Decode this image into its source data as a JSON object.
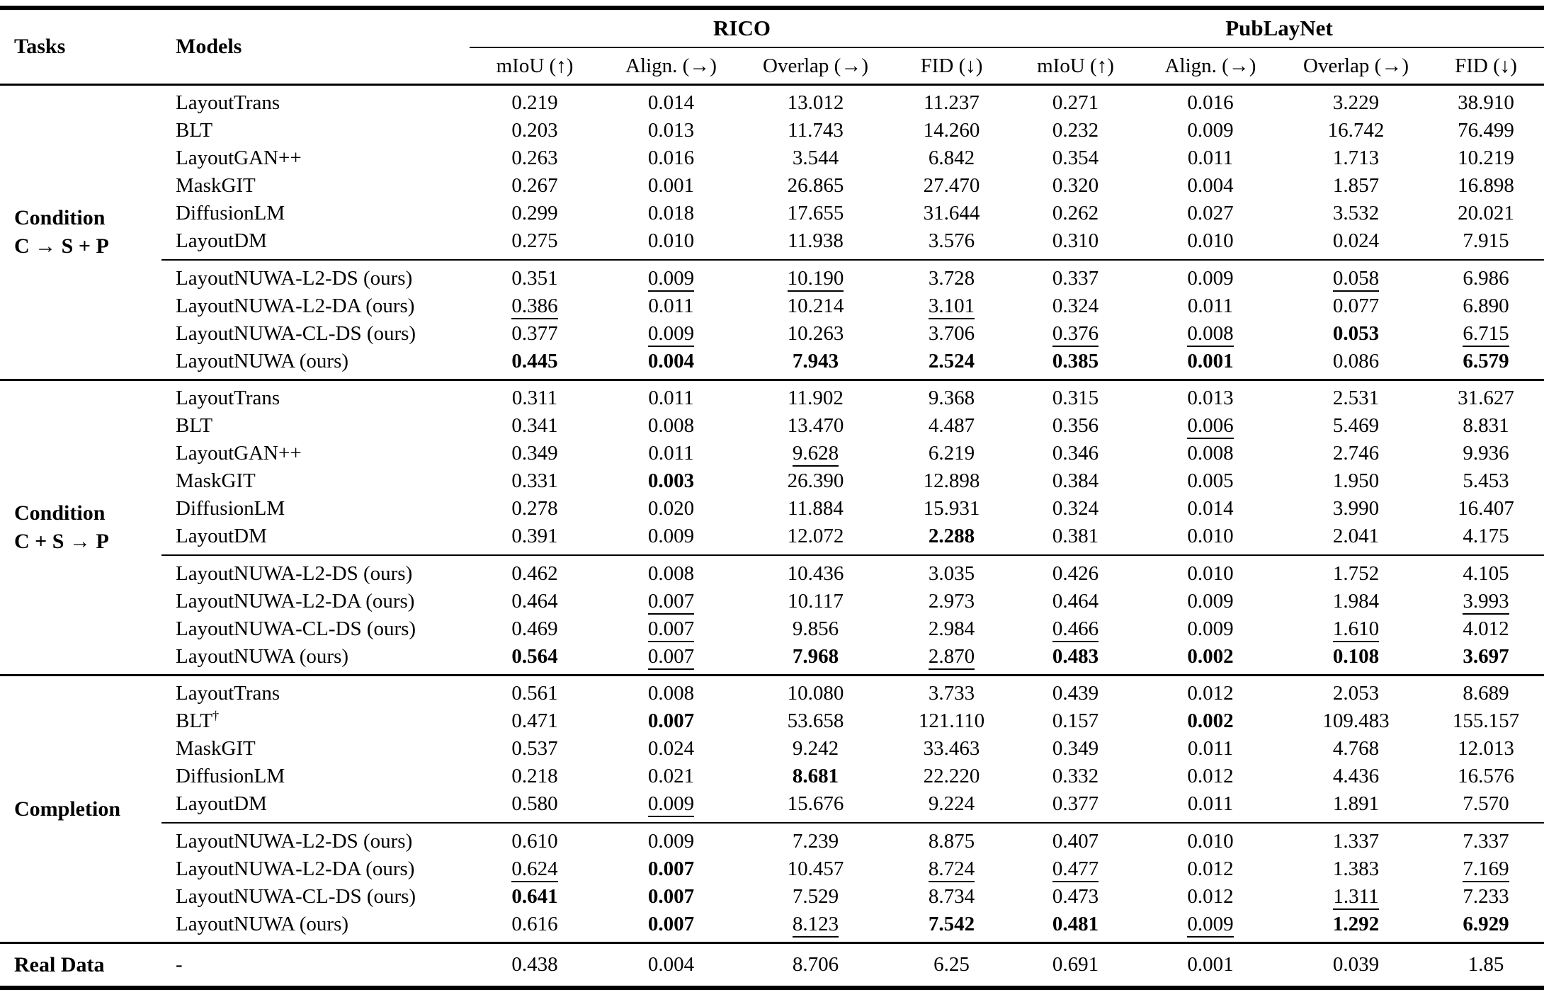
{
  "header": {
    "tasks_label": "Tasks",
    "models_label": "Models",
    "groups": [
      "RICO",
      "PubLayNet"
    ],
    "metrics": [
      "mIoU (↑)",
      "Align. (→)",
      "Overlap (→)",
      "FID (↓)"
    ]
  },
  "sections": [
    {
      "task": [
        "Condition",
        "C → S + P"
      ],
      "baselines": [
        {
          "model": "LayoutTrans",
          "values": [
            "0.219",
            "0.014",
            "13.012",
            "11.237",
            "0.271",
            "0.016",
            "3.229",
            "38.910"
          ]
        },
        {
          "model": "BLT",
          "values": [
            "0.203",
            "0.013",
            "11.743",
            "14.260",
            "0.232",
            "0.009",
            "16.742",
            "76.499"
          ]
        },
        {
          "model": "LayoutGAN++",
          "values": [
            "0.263",
            "0.016",
            "3.544",
            "6.842",
            "0.354",
            "0.011",
            "1.713",
            "10.219"
          ]
        },
        {
          "model": "MaskGIT",
          "values": [
            "0.267",
            "0.001",
            "26.865",
            "27.470",
            "0.320",
            "0.004",
            "1.857",
            "16.898"
          ]
        },
        {
          "model": "DiffusionLM",
          "values": [
            "0.299",
            "0.018",
            "17.655",
            "31.644",
            "0.262",
            "0.027",
            "3.532",
            "20.021"
          ]
        },
        {
          "model": "LayoutDM",
          "values": [
            "0.275",
            "0.010",
            "11.938",
            "3.576",
            "0.310",
            "0.010",
            "0.024",
            "7.915"
          ]
        }
      ],
      "ours": [
        {
          "model": "LayoutNUWA-L2-DS (ours)",
          "values": [
            "0.351",
            {
              "v": "0.009",
              "s": "u"
            },
            {
              "v": "10.190",
              "s": "u"
            },
            "3.728",
            "0.337",
            "0.009",
            {
              "v": "0.058",
              "s": "u"
            },
            "6.986"
          ]
        },
        {
          "model": "LayoutNUWA-L2-DA (ours)",
          "values": [
            {
              "v": "0.386",
              "s": "u"
            },
            "0.011",
            "10.214",
            {
              "v": "3.101",
              "s": "u"
            },
            "0.324",
            "0.011",
            "0.077",
            "6.890"
          ]
        },
        {
          "model": "LayoutNUWA-CL-DS (ours)",
          "values": [
            "0.377",
            {
              "v": "0.009",
              "s": "u"
            },
            "10.263",
            "3.706",
            {
              "v": "0.376",
              "s": "u"
            },
            {
              "v": "0.008",
              "s": "u"
            },
            {
              "v": "0.053",
              "s": "b"
            },
            {
              "v": "6.715",
              "s": "u"
            }
          ]
        },
        {
          "model": "LayoutNUWA (ours)",
          "values": [
            {
              "v": "0.445",
              "s": "b"
            },
            {
              "v": "0.004",
              "s": "b"
            },
            {
              "v": "7.943",
              "s": "b"
            },
            {
              "v": "2.524",
              "s": "b"
            },
            {
              "v": "0.385",
              "s": "b"
            },
            {
              "v": "0.001",
              "s": "b"
            },
            "0.086",
            {
              "v": "6.579",
              "s": "b"
            }
          ]
        }
      ]
    },
    {
      "task": [
        "Condition",
        "C + S → P"
      ],
      "baselines": [
        {
          "model": "LayoutTrans",
          "values": [
            "0.311",
            "0.011",
            "11.902",
            "9.368",
            "0.315",
            "0.013",
            "2.531",
            "31.627"
          ]
        },
        {
          "model": "BLT",
          "values": [
            "0.341",
            "0.008",
            "13.470",
            "4.487",
            "0.356",
            {
              "v": "0.006",
              "s": "u"
            },
            "5.469",
            "8.831"
          ]
        },
        {
          "model": "LayoutGAN++",
          "values": [
            "0.349",
            "0.011",
            {
              "v": "9.628",
              "s": "u"
            },
            "6.219",
            "0.346",
            "0.008",
            "2.746",
            "9.936"
          ]
        },
        {
          "model": "MaskGIT",
          "values": [
            "0.331",
            {
              "v": "0.003",
              "s": "b"
            },
            "26.390",
            "12.898",
            "0.384",
            "0.005",
            "1.950",
            "5.453"
          ]
        },
        {
          "model": "DiffusionLM",
          "values": [
            "0.278",
            "0.020",
            "11.884",
            "15.931",
            "0.324",
            "0.014",
            "3.990",
            "16.407"
          ]
        },
        {
          "model": "LayoutDM",
          "values": [
            "0.391",
            "0.009",
            "12.072",
            {
              "v": "2.288",
              "s": "b"
            },
            "0.381",
            "0.010",
            "2.041",
            "4.175"
          ]
        }
      ],
      "ours": [
        {
          "model": "LayoutNUWA-L2-DS (ours)",
          "values": [
            "0.462",
            "0.008",
            "10.436",
            "3.035",
            "0.426",
            "0.010",
            "1.752",
            "4.105"
          ]
        },
        {
          "model": "LayoutNUWA-L2-DA (ours)",
          "values": [
            "0.464",
            {
              "v": "0.007",
              "s": "u"
            },
            "10.117",
            "2.973",
            "0.464",
            "0.009",
            "1.984",
            {
              "v": "3.993",
              "s": "u"
            }
          ]
        },
        {
          "model": "LayoutNUWA-CL-DS (ours)",
          "values": [
            "0.469",
            {
              "v": "0.007",
              "s": "u"
            },
            "9.856",
            "2.984",
            {
              "v": "0.466",
              "s": "u"
            },
            "0.009",
            {
              "v": "1.610",
              "s": "u"
            },
            "4.012"
          ]
        },
        {
          "model": "LayoutNUWA (ours)",
          "values": [
            {
              "v": "0.564",
              "s": "b"
            },
            {
              "v": "0.007",
              "s": "u"
            },
            {
              "v": "7.968",
              "s": "b"
            },
            {
              "v": "2.870",
              "s": "u"
            },
            {
              "v": "0.483",
              "s": "b"
            },
            {
              "v": "0.002",
              "s": "b"
            },
            {
              "v": "0.108",
              "s": "b"
            },
            {
              "v": "3.697",
              "s": "b"
            }
          ]
        }
      ]
    },
    {
      "task": [
        "Completion"
      ],
      "baselines": [
        {
          "model": "LayoutTrans",
          "values": [
            "0.561",
            "0.008",
            "10.080",
            "3.733",
            "0.439",
            "0.012",
            "2.053",
            "8.689"
          ]
        },
        {
          "model": "BLT",
          "sup": "†",
          "values": [
            "0.471",
            {
              "v": "0.007",
              "s": "b"
            },
            "53.658",
            "121.110",
            "0.157",
            {
              "v": "0.002",
              "s": "b"
            },
            "109.483",
            "155.157"
          ]
        },
        {
          "model": "MaskGIT",
          "values": [
            "0.537",
            "0.024",
            "9.242",
            "33.463",
            "0.349",
            "0.011",
            "4.768",
            "12.013"
          ]
        },
        {
          "model": "DiffusionLM",
          "values": [
            "0.218",
            "0.021",
            {
              "v": "8.681",
              "s": "b"
            },
            "22.220",
            "0.332",
            "0.012",
            "4.436",
            "16.576"
          ]
        },
        {
          "model": "LayoutDM",
          "values": [
            "0.580",
            {
              "v": "0.009",
              "s": "u"
            },
            "15.676",
            "9.224",
            "0.377",
            "0.011",
            "1.891",
            "7.570"
          ]
        }
      ],
      "ours": [
        {
          "model": "LayoutNUWA-L2-DS (ours)",
          "values": [
            "0.610",
            "0.009",
            "7.239",
            "8.875",
            "0.407",
            "0.010",
            "1.337",
            "7.337"
          ]
        },
        {
          "model": "LayoutNUWA-L2-DA (ours)",
          "values": [
            {
              "v": "0.624",
              "s": "u"
            },
            {
              "v": "0.007",
              "s": "b"
            },
            "10.457",
            {
              "v": "8.724",
              "s": "u"
            },
            {
              "v": "0.477",
              "s": "u"
            },
            "0.012",
            "1.383",
            {
              "v": "7.169",
              "s": "u"
            }
          ]
        },
        {
          "model": "LayoutNUWA-CL-DS (ours)",
          "values": [
            {
              "v": "0.641",
              "s": "b"
            },
            {
              "v": "0.007",
              "s": "b"
            },
            "7.529",
            "8.734",
            "0.473",
            "0.012",
            {
              "v": "1.311",
              "s": "u"
            },
            "7.233"
          ]
        },
        {
          "model": "LayoutNUWA (ours)",
          "values": [
            "0.616",
            {
              "v": "0.007",
              "s": "b"
            },
            {
              "v": "8.123",
              "s": "u"
            },
            {
              "v": "7.542",
              "s": "b"
            },
            {
              "v": "0.481",
              "s": "b"
            },
            {
              "v": "0.009",
              "s": "u"
            },
            {
              "v": "1.292",
              "s": "b"
            },
            {
              "v": "6.929",
              "s": "b"
            }
          ]
        }
      ]
    },
    {
      "task": [
        "Real Data"
      ],
      "baselines": [
        {
          "model": "-",
          "values": [
            "0.438",
            "0.004",
            "8.706",
            "6.25",
            "0.691",
            "0.001",
            "0.039",
            "1.85"
          ]
        }
      ]
    }
  ]
}
